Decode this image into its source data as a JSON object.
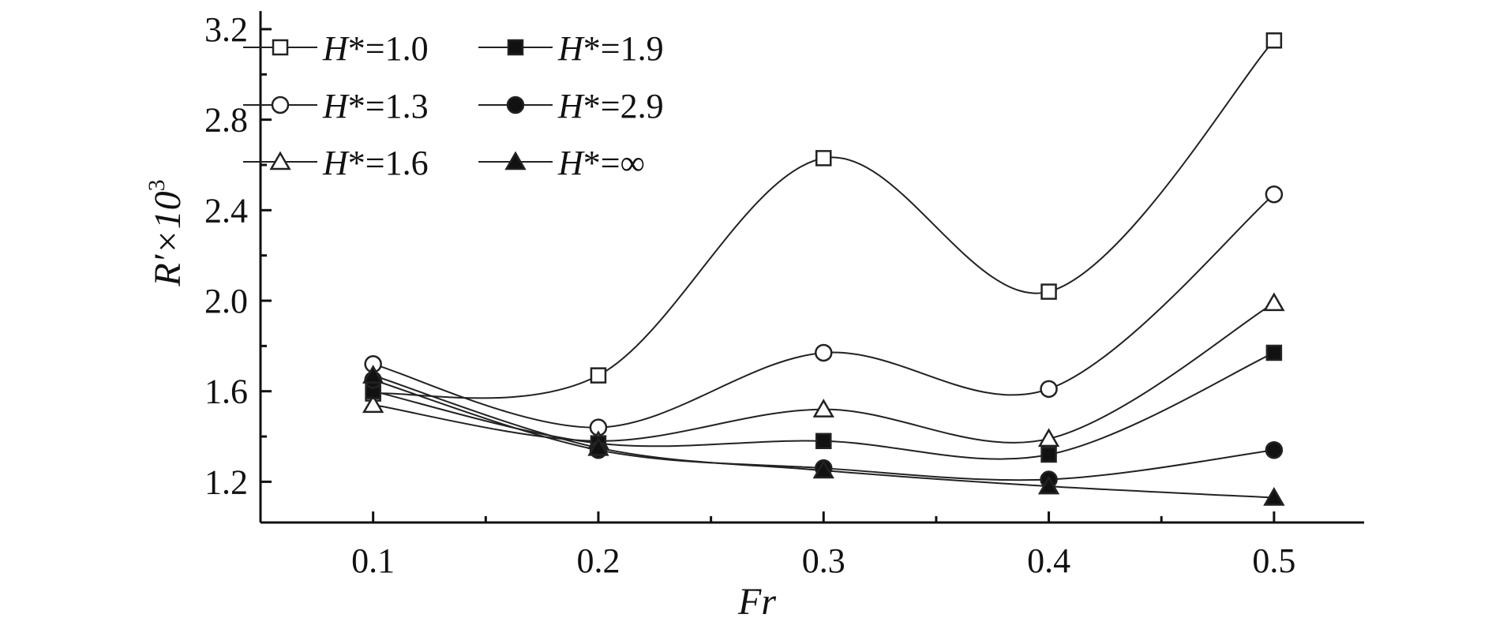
{
  "chart_data": {
    "type": "line",
    "xlabel": "Fr",
    "ylabel": "R′×10³",
    "ylabel_parts": {
      "main": "R′×10",
      "sup": "3"
    },
    "xlim": [
      0.05,
      0.54
    ],
    "ylim": [
      1.02,
      3.28
    ],
    "xticks": [
      "0.1",
      "0.2",
      "0.3",
      "0.4",
      "0.5"
    ],
    "xtick_values": [
      0.1,
      0.2,
      0.3,
      0.4,
      0.5
    ],
    "yticks": [
      "1.2",
      "1.6",
      "2.0",
      "2.4",
      "2.8",
      "3.2"
    ],
    "ytick_values": [
      1.2,
      1.6,
      2.0,
      2.4,
      2.8,
      3.2
    ],
    "grid": false,
    "legend_position": "top-left",
    "x": [
      0.1,
      0.2,
      0.3,
      0.4,
      0.5
    ],
    "series": [
      {
        "name": "H*=1.0",
        "label_var": "H",
        "label_rest": "*=1.0",
        "marker": "square-open",
        "values": [
          1.59,
          1.67,
          2.63,
          2.04,
          3.15
        ]
      },
      {
        "name": "H*=1.3",
        "label_var": "H",
        "label_rest": "*=1.3",
        "marker": "circle-open",
        "values": [
          1.72,
          1.44,
          1.77,
          1.61,
          2.47
        ]
      },
      {
        "name": "H*=1.6",
        "label_var": "H",
        "label_rest": "*=1.6",
        "marker": "triangle-open",
        "values": [
          1.54,
          1.38,
          1.52,
          1.39,
          1.99
        ]
      },
      {
        "name": "H*=1.9",
        "label_var": "H",
        "label_rest": "*=1.9",
        "marker": "square-filled",
        "values": [
          1.6,
          1.37,
          1.38,
          1.32,
          1.77
        ]
      },
      {
        "name": "H*=2.9",
        "label_var": "H",
        "label_rest": "*=2.9",
        "marker": "circle-filled",
        "values": [
          1.65,
          1.34,
          1.26,
          1.21,
          1.34
        ]
      },
      {
        "name": "H*=∞",
        "label_var": "H",
        "label_rest": "*=∞",
        "marker": "triangle-filled",
        "values": [
          1.67,
          1.35,
          1.25,
          1.18,
          1.13
        ]
      }
    ],
    "legend_order": [
      [
        "H*=1.0",
        "H*=1.9"
      ],
      [
        "H*=1.3",
        "H*=2.9"
      ],
      [
        "H*=1.6",
        "H*=∞"
      ]
    ]
  },
  "style": {
    "line_color": "#222222",
    "marker_stroke": "#222222",
    "marker_fill_open": "#ffffff",
    "marker_fill_filled": "#111111",
    "axis_color": "#111111"
  }
}
